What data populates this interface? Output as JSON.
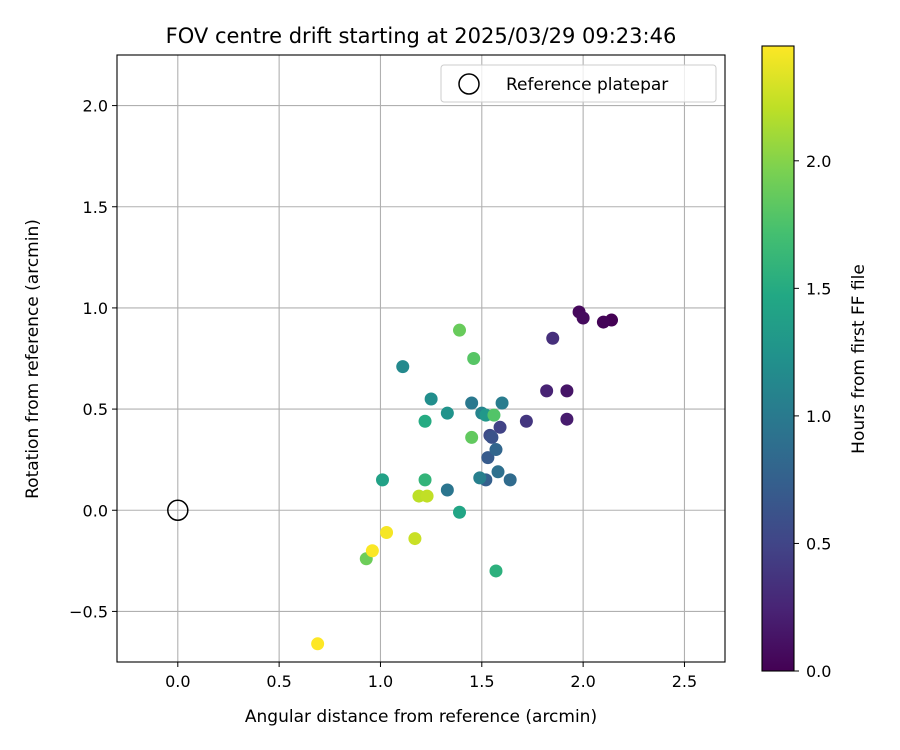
{
  "chart_data": {
    "type": "scatter",
    "title": "FOV centre drift starting at 2025/03/29 09:23:46",
    "xlabel": "Angular distance from reference (arcmin)",
    "ylabel": "Rotation from reference (arcmin)",
    "xlim": [
      -0.3,
      2.7
    ],
    "ylim": [
      -0.75,
      2.25
    ],
    "xticks": [
      "0.0",
      "0.5",
      "1.0",
      "1.5",
      "2.0",
      "2.5"
    ],
    "yticks": [
      "−0.5",
      "0.0",
      "0.5",
      "1.0",
      "1.5",
      "2.0"
    ],
    "grid": true,
    "legend": {
      "position": "top-right",
      "entries": [
        "Reference platepar"
      ]
    },
    "reference_point": {
      "x": 0.0,
      "y": 0.0,
      "label": "Reference platepar"
    },
    "colorbar": {
      "label": "Hours from first FF file",
      "colormap": "viridis",
      "range": [
        0.0,
        2.45
      ],
      "ticks": [
        "0.0",
        "0.5",
        "1.0",
        "1.5",
        "2.0"
      ]
    },
    "points": [
      {
        "x": 2.14,
        "y": 0.94,
        "hours": 0.0
      },
      {
        "x": 2.1,
        "y": 0.93,
        "hours": 0.02
      },
      {
        "x": 1.98,
        "y": 0.98,
        "hours": 0.05
      },
      {
        "x": 2.0,
        "y": 0.95,
        "hours": 0.07
      },
      {
        "x": 1.92,
        "y": 0.59,
        "hours": 0.14
      },
      {
        "x": 1.92,
        "y": 0.45,
        "hours": 0.19
      },
      {
        "x": 1.82,
        "y": 0.59,
        "hours": 0.24
      },
      {
        "x": 1.85,
        "y": 0.85,
        "hours": 0.33
      },
      {
        "x": 1.72,
        "y": 0.44,
        "hours": 0.38
      },
      {
        "x": 1.59,
        "y": 0.41,
        "hours": 0.48
      },
      {
        "x": 1.54,
        "y": 0.37,
        "hours": 0.55
      },
      {
        "x": 1.55,
        "y": 0.36,
        "hours": 0.62
      },
      {
        "x": 1.53,
        "y": 0.26,
        "hours": 0.7
      },
      {
        "x": 1.52,
        "y": 0.15,
        "hours": 0.74
      },
      {
        "x": 1.57,
        "y": 0.3,
        "hours": 0.8
      },
      {
        "x": 1.64,
        "y": 0.15,
        "hours": 0.85
      },
      {
        "x": 1.58,
        "y": 0.19,
        "hours": 0.9
      },
      {
        "x": 1.33,
        "y": 0.1,
        "hours": 0.95
      },
      {
        "x": 1.45,
        "y": 0.53,
        "hours": 0.98
      },
      {
        "x": 1.6,
        "y": 0.53,
        "hours": 1.02
      },
      {
        "x": 1.49,
        "y": 0.16,
        "hours": 1.05
      },
      {
        "x": 1.5,
        "y": 0.48,
        "hours": 1.1
      },
      {
        "x": 1.11,
        "y": 0.71,
        "hours": 1.15
      },
      {
        "x": 1.25,
        "y": 0.55,
        "hours": 1.2
      },
      {
        "x": 1.33,
        "y": 0.48,
        "hours": 1.25
      },
      {
        "x": 1.52,
        "y": 0.47,
        "hours": 1.3
      },
      {
        "x": 1.01,
        "y": 0.15,
        "hours": 1.4
      },
      {
        "x": 1.39,
        "y": -0.01,
        "hours": 1.44
      },
      {
        "x": 1.22,
        "y": 0.44,
        "hours": 1.5
      },
      {
        "x": 1.57,
        "y": -0.3,
        "hours": 1.55
      },
      {
        "x": 1.22,
        "y": 0.15,
        "hours": 1.6
      },
      {
        "x": 1.56,
        "y": 0.47,
        "hours": 1.78
      },
      {
        "x": 1.46,
        "y": 0.75,
        "hours": 1.8
      },
      {
        "x": 1.45,
        "y": 0.36,
        "hours": 1.85
      },
      {
        "x": 1.39,
        "y": 0.89,
        "hours": 1.88
      },
      {
        "x": 0.93,
        "y": -0.24,
        "hours": 1.9
      },
      {
        "x": 1.19,
        "y": 0.07,
        "hours": 2.2
      },
      {
        "x": 1.23,
        "y": 0.07,
        "hours": 2.22
      },
      {
        "x": 1.17,
        "y": -0.14,
        "hours": 2.25
      },
      {
        "x": 1.03,
        "y": -0.11,
        "hours": 2.42
      },
      {
        "x": 0.96,
        "y": -0.2,
        "hours": 2.44
      },
      {
        "x": 0.69,
        "y": -0.66,
        "hours": 2.45
      }
    ]
  }
}
